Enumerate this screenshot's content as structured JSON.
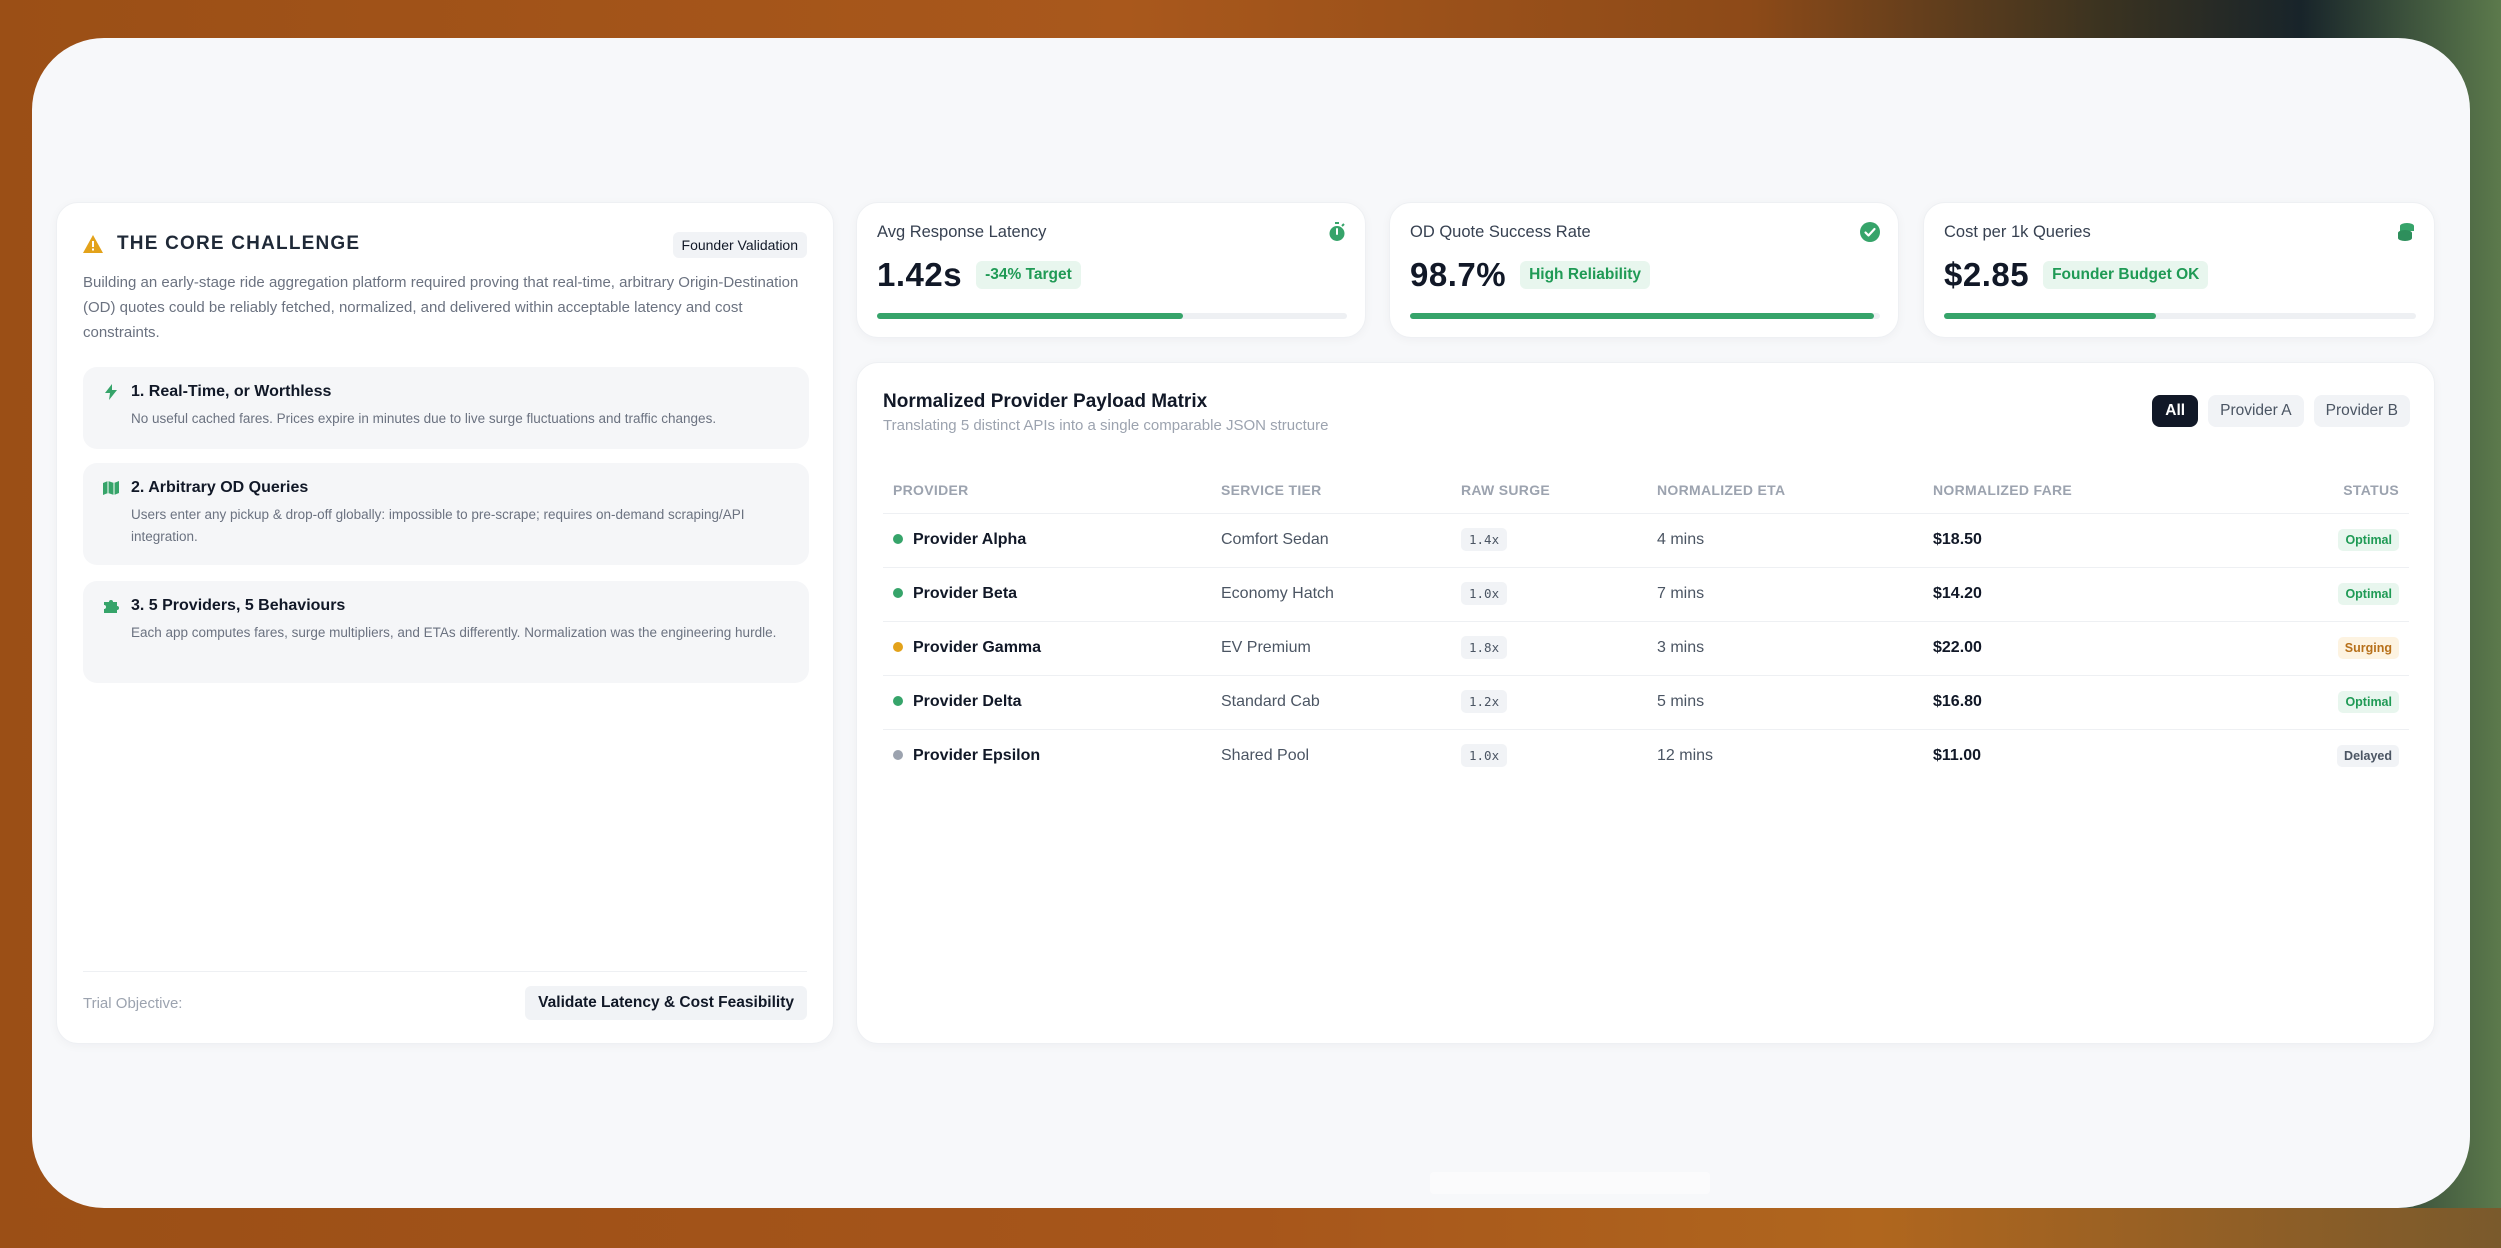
{
  "challenge": {
    "title": "THE CORE CHALLENGE",
    "badge": "Founder Validation",
    "description": "Building an early-stage ride aggregation platform required proving that real-time, arbitrary Origin-Destination (OD) quotes could be reliably fetched, normalized, and delivered within acceptable latency and cost constraints.",
    "items": [
      {
        "title": "1. Real-Time, or Worthless",
        "text": "No useful cached fares. Prices expire in minutes due to live surge fluctuations and traffic changes.",
        "icon": "lightning-icon"
      },
      {
        "title": "2. Arbitrary OD Queries",
        "text": "Users enter any pickup & drop-off globally: impossible to pre-scrape; requires on-demand scraping/API integration.",
        "icon": "map-icon"
      },
      {
        "title": "3. 5 Providers, 5 Behaviours",
        "text": "Each app computes fares, surge multipliers, and ETAs differently. Normalization was the engineering hurdle.",
        "icon": "puzzle-icon"
      }
    ],
    "trial_label": "Trial Objective:",
    "trial_value": "Validate Latency & Cost Feasibility"
  },
  "metrics": [
    {
      "label": "Avg Response Latency",
      "value": "1.42s",
      "pill": "-34% Target",
      "progress": 0.65,
      "icon": "stopwatch-icon"
    },
    {
      "label": "OD Quote Success Rate",
      "value": "98.7%",
      "pill": "High Reliability",
      "progress": 0.987,
      "icon": "check-circle-icon"
    },
    {
      "label": "Cost per 1k Queries",
      "value": "$2.85",
      "pill": "Founder Budget OK",
      "progress": 0.45,
      "icon": "coins-icon"
    }
  ],
  "matrix": {
    "title": "Normalized Provider Payload Matrix",
    "subtitle": "Translating 5 distinct APIs into a single comparable JSON structure",
    "filters": [
      "All",
      "Provider A",
      "Provider B"
    ],
    "columns": [
      "PROVIDER",
      "SERVICE TIER",
      "RAW SURGE",
      "NORMALIZED ETA",
      "NORMALIZED FARE",
      "STATUS"
    ],
    "rows": [
      {
        "provider": "Provider Alpha",
        "tier": "Comfort Sedan",
        "surge": "1.4x",
        "eta": "4 mins",
        "fare": "$18.50",
        "status": "Optimal",
        "dot": "#36a46a"
      },
      {
        "provider": "Provider Beta",
        "tier": "Economy Hatch",
        "surge": "1.0x",
        "eta": "7 mins",
        "fare": "$14.20",
        "status": "Optimal",
        "dot": "#36a46a"
      },
      {
        "provider": "Provider Gamma",
        "tier": "EV Premium",
        "surge": "1.8x",
        "eta": "3 mins",
        "fare": "$22.00",
        "status": "Surging",
        "dot": "#e3a21a"
      },
      {
        "provider": "Provider Delta",
        "tier": "Standard Cab",
        "surge": "1.2x",
        "eta": "5 mins",
        "fare": "$16.80",
        "status": "Optimal",
        "dot": "#36a46a"
      },
      {
        "provider": "Provider Epsilon",
        "tier": "Shared Pool",
        "surge": "1.0x",
        "eta": "12 mins",
        "fare": "$11.00",
        "status": "Delayed",
        "dot": "#9ca3af"
      }
    ]
  },
  "colors": {
    "accent_green": "#36a46a",
    "warning_amber": "#e3a21a",
    "dark": "#111827"
  }
}
